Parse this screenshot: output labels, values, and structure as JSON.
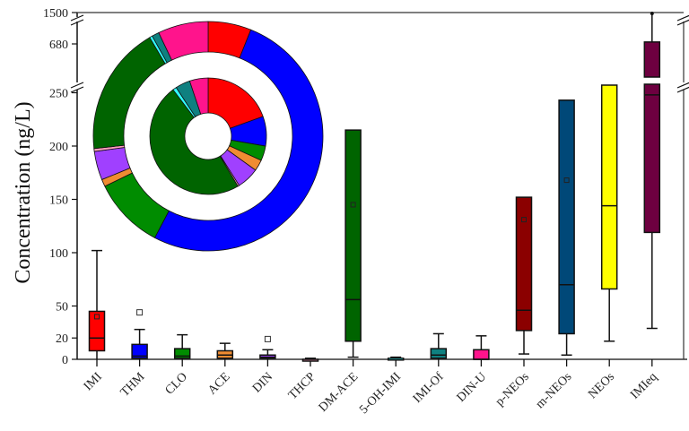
{
  "chart_data": {
    "type": "box",
    "title": "",
    "xlabel": "",
    "ylabel": "Concentration (ng/L)",
    "y_axis": {
      "segments": [
        {
          "range": [
            0,
            250
          ],
          "ticks": [
            0,
            20,
            50,
            100,
            150,
            200,
            250
          ]
        },
        {
          "range": [
            250,
            1500
          ],
          "ticks": [
            680,
            1500
          ],
          "broken": true
        }
      ],
      "break_marks": [
        {
          "between": [
            250,
            680
          ]
        },
        {
          "between": [
            680,
            1500
          ]
        }
      ]
    },
    "categories": [
      "IMI",
      "THM",
      "CLO",
      "ACE",
      "DIN",
      "THCP",
      "DM-ACE",
      "5-OH-IMI",
      "IMI-Of",
      "DIN-U",
      "p-NEOs",
      "m-NEOs",
      "NEOs",
      "IMIeq"
    ],
    "boxes": [
      {
        "label": "IMI",
        "color": "#ff0000",
        "min": 0,
        "q1": 8,
        "median": 20,
        "q3": 45,
        "max": 102,
        "mean": 40,
        "outliers": []
      },
      {
        "label": "THM",
        "color": "#0000ff",
        "min": 0,
        "q1": 1,
        "median": 3,
        "q3": 14,
        "max": 28,
        "mean": 8,
        "outliers": [
          44
        ]
      },
      {
        "label": "CLO",
        "color": "#008c00",
        "min": 0,
        "q1": 1,
        "median": 3,
        "q3": 10,
        "max": 23,
        "mean": 16,
        "outliers": []
      },
      {
        "label": "ACE",
        "color": "#f08c32",
        "min": 0,
        "q1": 1,
        "median": 4,
        "q3": 8,
        "max": 15,
        "mean": 11,
        "outliers": []
      },
      {
        "label": "DIN",
        "color": "#a040ff",
        "min": 0,
        "q1": 1,
        "median": 2,
        "q3": 4,
        "max": 9,
        "mean": 4,
        "outliers": [
          19
        ]
      },
      {
        "label": "THCP",
        "color": "#ff9ebb",
        "min": 0,
        "q1": 0,
        "median": 0,
        "q3": 0,
        "max": 1,
        "mean": 0.3,
        "outliers": []
      },
      {
        "label": "DM-ACE",
        "color": "#006400",
        "min": 2,
        "q1": 17,
        "median": 56,
        "q3": 215,
        "max": 215,
        "mean": 145,
        "outliers": []
      },
      {
        "label": "5-OH-IMI",
        "color": "#30ffff",
        "min": 0,
        "q1": 0,
        "median": 0.5,
        "q3": 1,
        "max": 2,
        "mean": 1,
        "outliers": []
      },
      {
        "label": "IMI-Of",
        "color": "#0f8080",
        "min": 0,
        "q1": 1,
        "median": 4,
        "q3": 10,
        "max": 24,
        "mean": 7,
        "outliers": []
      },
      {
        "label": "DIN-U",
        "color": "#ff148c",
        "min": 0,
        "q1": 0,
        "median": 0,
        "q3": 9,
        "max": 22,
        "mean": 14,
        "outliers": []
      },
      {
        "label": "p-NEOs",
        "color": "#8b0000",
        "min": 5,
        "q1": 27,
        "median": 46,
        "q3": 152,
        "max": 152,
        "mean": 131,
        "outliers": []
      },
      {
        "label": "m-NEOs",
        "color": "#004878",
        "min": 4,
        "q1": 24,
        "median": 70,
        "q3": 243,
        "max": 243,
        "mean": 168,
        "outliers": []
      },
      {
        "label": "NEOs",
        "color": "#ffff00",
        "min": 17,
        "q1": 66,
        "median": 144,
        "q3": 300,
        "max": 300,
        "mean": null,
        "outliers": []
      },
      {
        "label": "IMIeq",
        "color": "#6e0040",
        "min": 29,
        "q1": 119,
        "median": 248,
        "q3": 730,
        "max": 1500,
        "mean": null,
        "outliers": []
      }
    ],
    "inset_donut": {
      "type": "pie",
      "description": "Nested donut: inner ring = compound composition, outer ring = composition share",
      "inner_ring": [
        {
          "label": "IMI",
          "color": "#ff0000",
          "value": 19
        },
        {
          "label": "THM",
          "color": "#0000ff",
          "value": 8
        },
        {
          "label": "CLO",
          "color": "#008c00",
          "value": 4
        },
        {
          "label": "ACE",
          "color": "#f08c32",
          "value": 3
        },
        {
          "label": "DIN",
          "color": "#a040ff",
          "value": 6
        },
        {
          "label": "THCP",
          "color": "#ff9ebb",
          "value": 0.4
        },
        {
          "label": "DM-ACE",
          "color": "#006400",
          "value": 47
        },
        {
          "label": "5-OH-IMI",
          "color": "#30ffff",
          "value": 1
        },
        {
          "label": "IMI-Of",
          "color": "#0f8080",
          "value": 4
        },
        {
          "label": "DIN-U",
          "color": "#ff148c",
          "value": 5
        }
      ],
      "outer_ring": [
        {
          "label": "IMI",
          "color": "#ff0000",
          "value": 6
        },
        {
          "label": "THM",
          "color": "#0000ff",
          "value": 51
        },
        {
          "label": "CLO",
          "color": "#008c00",
          "value": 10
        },
        {
          "label": "ACE",
          "color": "#f08c32",
          "value": 1
        },
        {
          "label": "DIN",
          "color": "#a040ff",
          "value": 4
        },
        {
          "label": "THCP",
          "color": "#ff9ebb",
          "value": 0.4
        },
        {
          "label": "DM-ACE",
          "color": "#006400",
          "value": 18
        },
        {
          "label": "5-OH-IMI",
          "color": "#30ffff",
          "value": 0.4
        },
        {
          "label": "IMI-Of",
          "color": "#0f8080",
          "value": 1
        },
        {
          "label": "DIN-U",
          "color": "#ff148c",
          "value": 7
        }
      ]
    },
    "grid": false,
    "legend": null
  }
}
